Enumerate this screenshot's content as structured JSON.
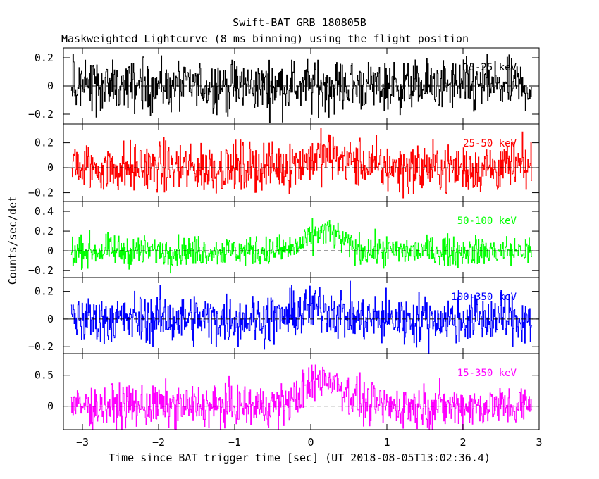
{
  "chart_data": {
    "type": "line",
    "title": "Swift-BAT GRB 180805B",
    "subtitle": "Maskweighted Lightcurve (8 ms binning) using the flight position",
    "xlabel": "Time since BAT trigger time [sec] (UT 2018-08-05T13:02:36.4)",
    "ylabel": "Counts/sec/det",
    "xlim": [
      -3.25,
      3.0
    ],
    "x_ticks": [
      -3,
      -2,
      -1,
      0,
      1,
      2,
      3
    ],
    "x_tick_labels": [
      "-3",
      "-2",
      "-1",
      "0",
      "1",
      "2",
      "3"
    ],
    "x_data_range": [
      -3.15,
      2.9
    ],
    "bin_size_sec": 0.008,
    "grid": false,
    "panels": [
      {
        "name": "15-25 keV",
        "color": "#000000",
        "ylim": [
          -0.27,
          0.27
        ],
        "y_ticks": [
          -0.2,
          0,
          0.2
        ],
        "y_tick_labels": [
          "-0.2",
          "0",
          "0.2"
        ],
        "noise_amplitude": 0.09,
        "pulse_peak": 0.0,
        "pulse_center": 0.2,
        "pulse_width": 0.25
      },
      {
        "name": "25-50 keV",
        "color": "#ff0000",
        "ylim": [
          -0.27,
          0.35
        ],
        "y_ticks": [
          -0.2,
          0,
          0.2
        ],
        "y_tick_labels": [
          "-0.2",
          "0",
          "0.2"
        ],
        "noise_amplitude": 0.1,
        "pulse_peak": 0.09,
        "pulse_center": 0.2,
        "pulse_width": 0.3
      },
      {
        "name": "50-100 keV",
        "color": "#00ff00",
        "ylim": [
          -0.27,
          0.5
        ],
        "y_ticks": [
          -0.2,
          0,
          0.2,
          0.4
        ],
        "y_tick_labels": [
          "-0.2",
          "0",
          "0.2",
          "0.4"
        ],
        "noise_amplitude": 0.075,
        "pulse_peak": 0.2,
        "pulse_center": 0.18,
        "pulse_width": 0.2
      },
      {
        "name": "100-350 keV",
        "color": "#0000ff",
        "ylim": [
          -0.25,
          0.3
        ],
        "y_ticks": [
          -0.2,
          0,
          0.2
        ],
        "y_tick_labels": [
          "-0.2",
          "0",
          "0.2"
        ],
        "noise_amplitude": 0.09,
        "pulse_peak": 0.08,
        "pulse_center": 0.1,
        "pulse_width": 0.25
      },
      {
        "name": "15-350 keV",
        "color": "#ff00ff",
        "ylim": [
          -0.38,
          0.85
        ],
        "y_ticks": [
          0,
          0.5
        ],
        "y_tick_labels": [
          "0",
          "0.5"
        ],
        "noise_amplitude": 0.17,
        "pulse_peak": 0.45,
        "pulse_center": 0.18,
        "pulse_width": 0.25
      }
    ]
  }
}
